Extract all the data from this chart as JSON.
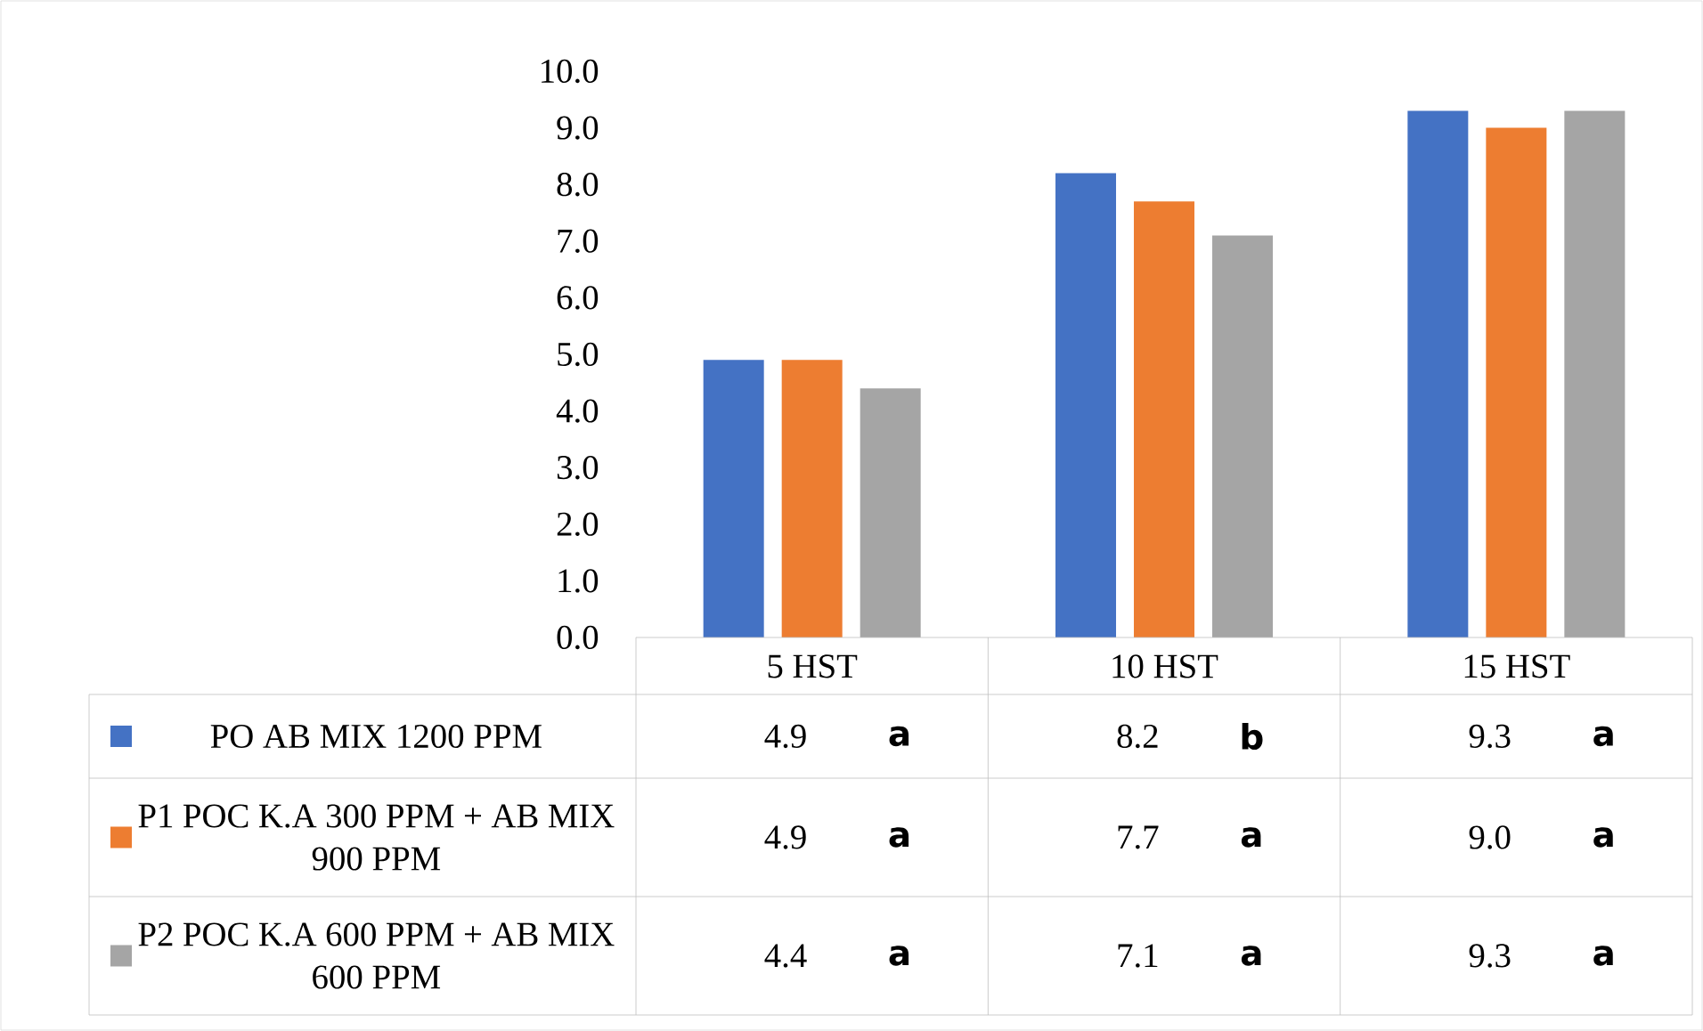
{
  "chart_data": {
    "type": "bar",
    "categories": [
      "5 HST",
      "10 HST",
      "15 HST"
    ],
    "series": [
      {
        "name": "PO AB MIX 1200 PPM",
        "color": "#4472c4",
        "values": [
          4.9,
          8.2,
          9.3
        ],
        "value_labels": [
          "4.9",
          "8.2",
          "9.3"
        ]
      },
      {
        "name": "P1 POC K.A 300 PPM + AB MIX 900 PPM",
        "color": "#ed7d31",
        "values": [
          4.9,
          7.7,
          9.0
        ],
        "value_labels": [
          "4.9",
          "7.7",
          "9.0"
        ]
      },
      {
        "name": "P2 POC K.A 600 PPM + AB MIX 600 PPM",
        "color": "#a5a5a5",
        "values": [
          4.4,
          7.1,
          9.3
        ],
        "value_labels": [
          "4.4",
          "7.1",
          "9.3"
        ]
      }
    ],
    "ylim": [
      0,
      10
    ],
    "yticks": [
      {
        "value": 0,
        "label": "0.0"
      },
      {
        "value": 1,
        "label": "1.0"
      },
      {
        "value": 2,
        "label": "2.0"
      },
      {
        "value": 3,
        "label": "3.0"
      },
      {
        "value": 4,
        "label": "4.0"
      },
      {
        "value": 5,
        "label": "5.0"
      },
      {
        "value": 6,
        "label": "6.0"
      },
      {
        "value": 7,
        "label": "7.0"
      },
      {
        "value": 8,
        "label": "8.0"
      },
      {
        "value": 9,
        "label": "9.0"
      },
      {
        "value": 10,
        "label": "10.0"
      }
    ],
    "legend": "bottom",
    "annotations": [
      "a",
      "b",
      "a",
      "a",
      "a",
      "a",
      "a",
      "a",
      "a"
    ]
  }
}
